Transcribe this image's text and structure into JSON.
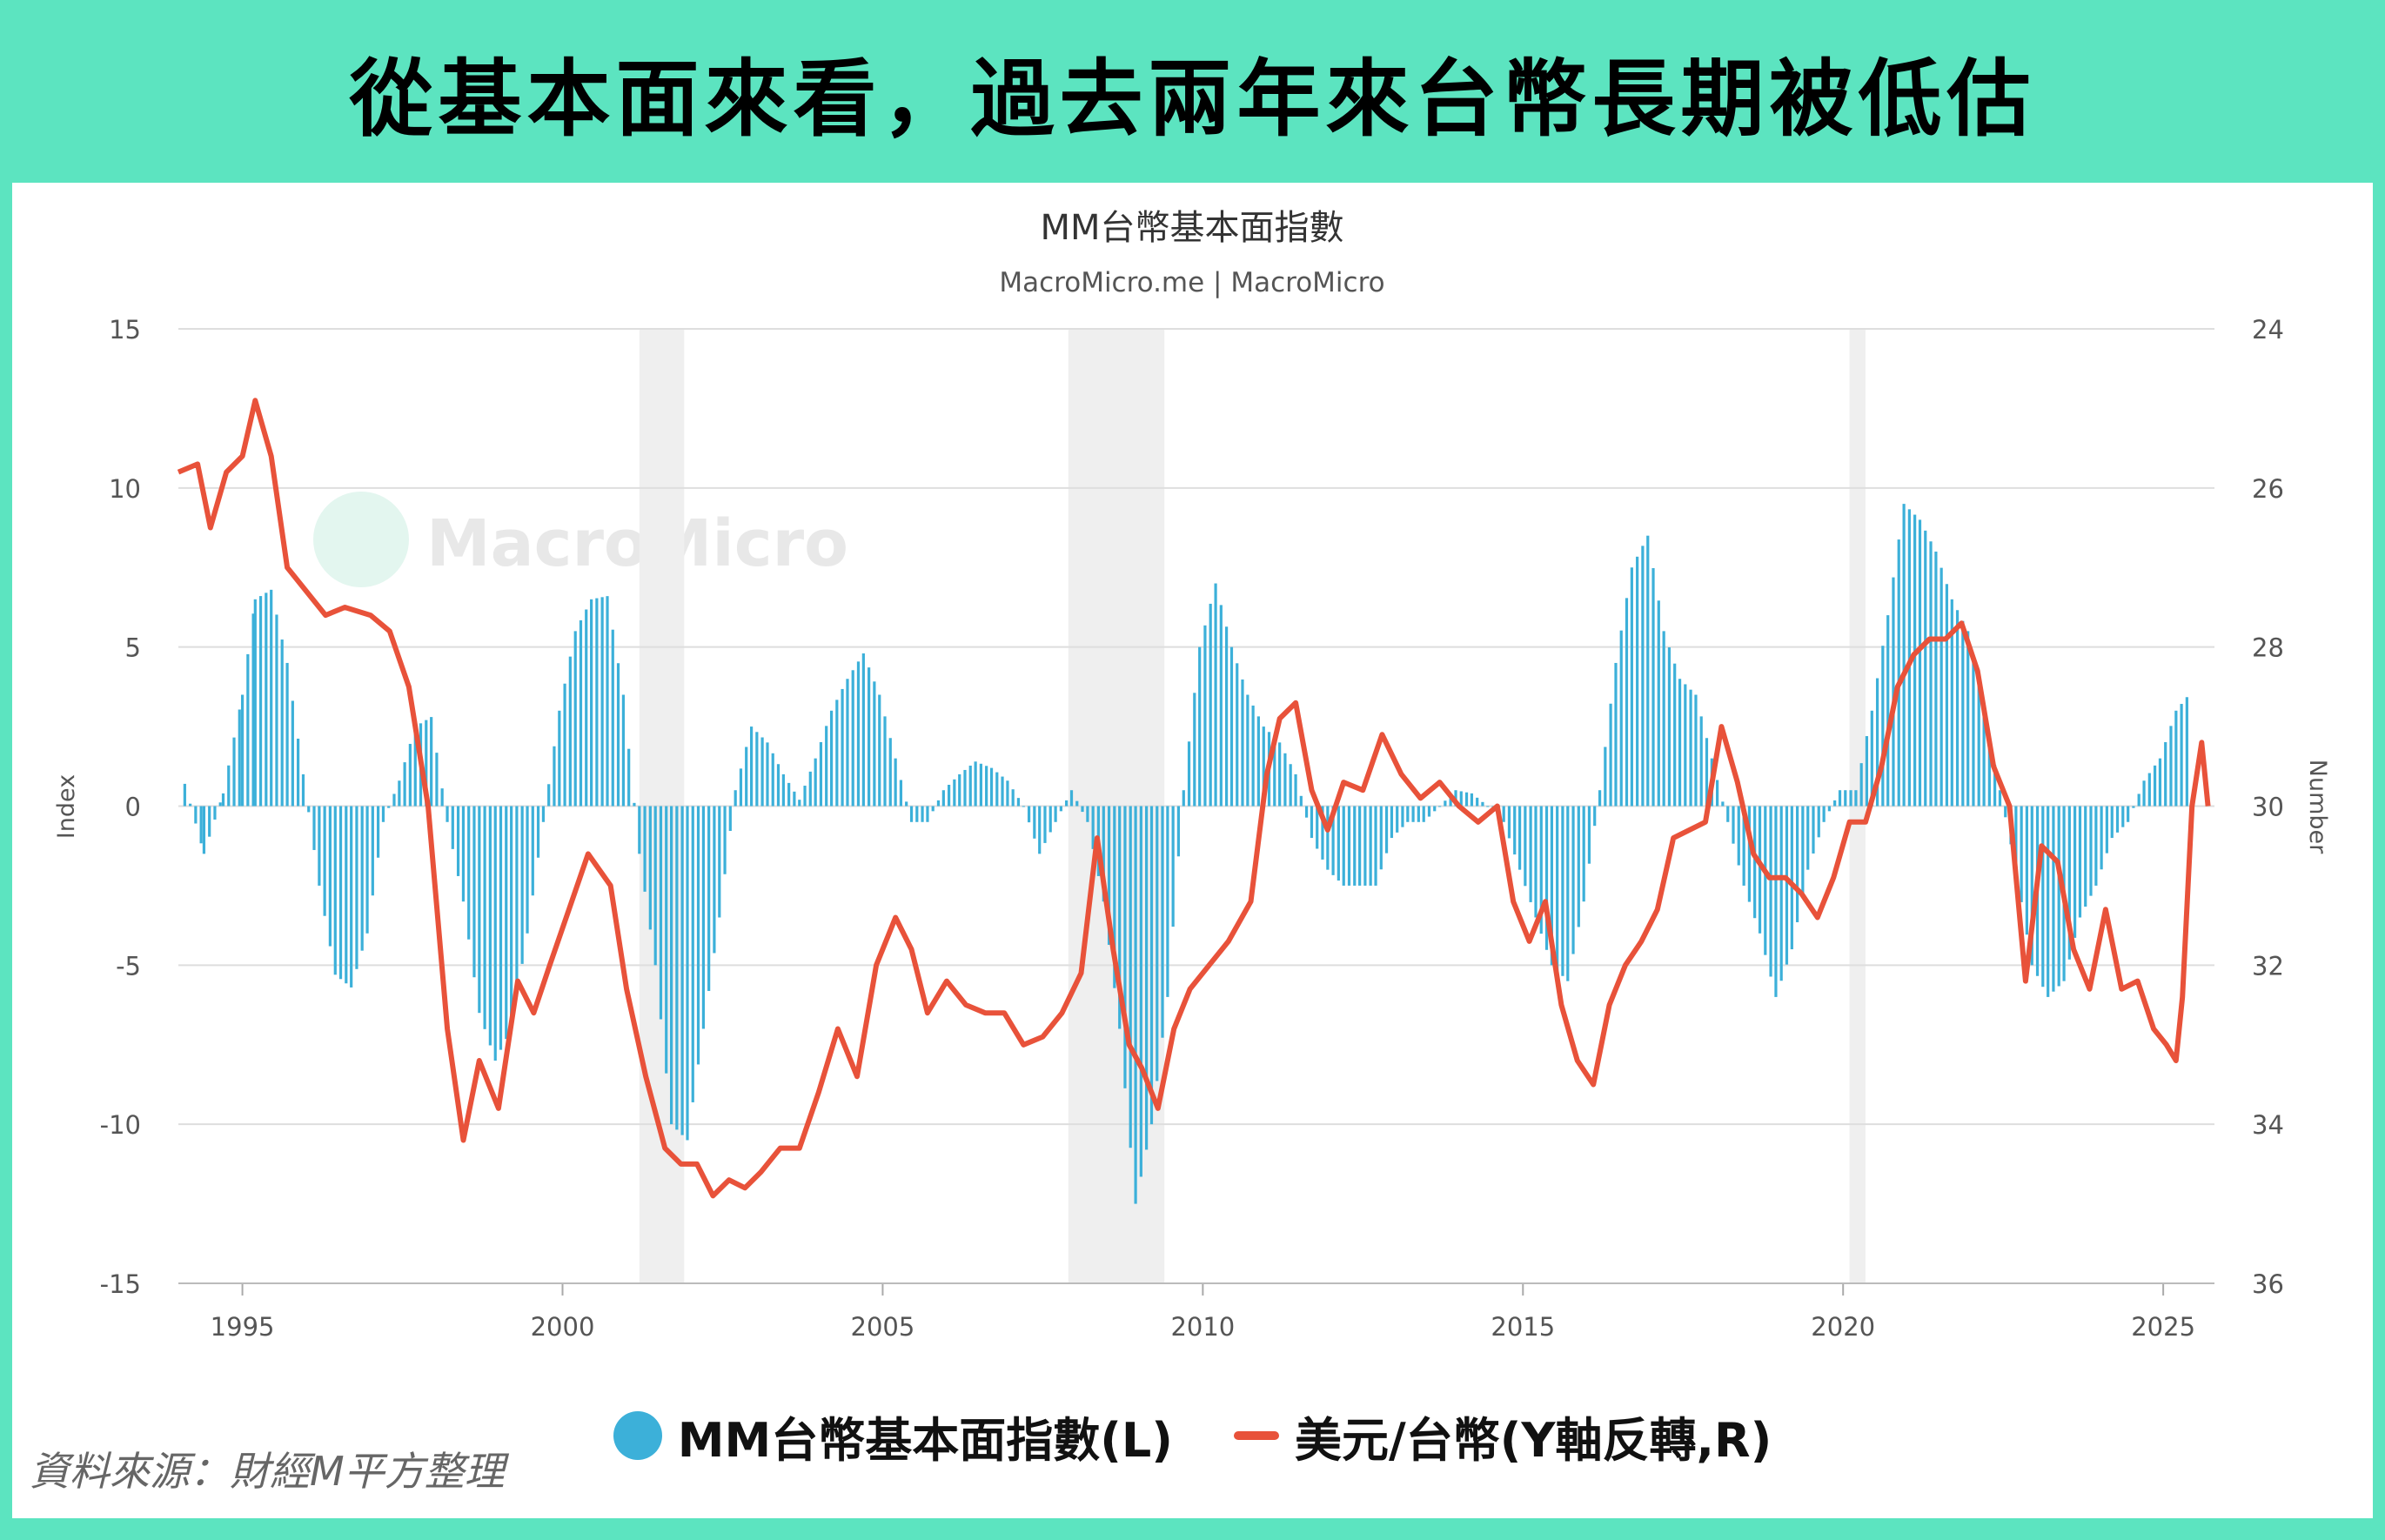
{
  "banner": {
    "title": "從基本面來看，過去兩年來台幣長期被低估"
  },
  "watermark": {
    "text": "MacroMicro"
  },
  "source": {
    "text": "資料來源：財經M平方整理"
  },
  "colors": {
    "bars": "#3cb0d9",
    "line": "#e8523a",
    "frame": "#5ce4c0",
    "recession": "#efefef"
  },
  "chart_data": {
    "type": "bar+line",
    "title": "MM台幣基本面指數",
    "subtitle": "MacroMicro.me | MacroMicro",
    "ylabel_left": "Index",
    "ylabel_right": "Number",
    "ylim_left": [
      -15,
      15
    ],
    "ylim_right": [
      36,
      24
    ],
    "right_axis_inverted": true,
    "yticks_left": [
      15,
      10,
      5,
      0,
      -5,
      -10,
      -15
    ],
    "yticks_right": [
      24,
      26,
      28,
      30,
      32,
      34,
      36
    ],
    "xlim": [
      1994.0,
      2025.8
    ],
    "xticks": [
      1995,
      2000,
      2005,
      2010,
      2015,
      2020,
      2025
    ],
    "grid": true,
    "legend_position": "bottom-center",
    "recession_bands": [
      [
        2001.2,
        2001.9
      ],
      [
        2007.9,
        2009.4
      ],
      [
        2020.1,
        2020.35
      ]
    ],
    "series": [
      {
        "name": "MM台幣基本面指數(L)",
        "type": "bar",
        "axis": "left",
        "points": [
          [
            1994.1,
            0.7
          ],
          [
            1994.4,
            -1.5
          ],
          [
            1994.7,
            0.4
          ],
          [
            1995.0,
            3.5
          ],
          [
            1995.2,
            6.5
          ],
          [
            1995.45,
            6.8
          ],
          [
            1995.7,
            4.5
          ],
          [
            1995.95,
            1.0
          ],
          [
            1996.2,
            -2.5
          ],
          [
            1996.45,
            -5.3
          ],
          [
            1996.7,
            -5.7
          ],
          [
            1996.95,
            -4.0
          ],
          [
            1997.2,
            -0.5
          ],
          [
            1997.45,
            0.8
          ],
          [
            1997.7,
            2.5
          ],
          [
            1997.95,
            2.8
          ],
          [
            1998.2,
            -0.5
          ],
          [
            1998.45,
            -3.0
          ],
          [
            1998.7,
            -6.5
          ],
          [
            1998.95,
            -8.0
          ],
          [
            1999.2,
            -7.0
          ],
          [
            1999.45,
            -4.0
          ],
          [
            1999.7,
            -0.5
          ],
          [
            1999.95,
            3.0
          ],
          [
            2000.2,
            5.5
          ],
          [
            2000.45,
            6.5
          ],
          [
            2000.7,
            6.6
          ],
          [
            2000.95,
            3.5
          ],
          [
            2001.2,
            -1.5
          ],
          [
            2001.45,
            -5.0
          ],
          [
            2001.7,
            -10.0
          ],
          [
            2001.95,
            -10.5
          ],
          [
            2002.2,
            -7.0
          ],
          [
            2002.45,
            -3.5
          ],
          [
            2002.7,
            0.5
          ],
          [
            2002.95,
            2.5
          ],
          [
            2003.2,
            2.0
          ],
          [
            2003.45,
            1.0
          ],
          [
            2003.7,
            0.2
          ],
          [
            2003.95,
            1.5
          ],
          [
            2004.2,
            3.0
          ],
          [
            2004.45,
            4.0
          ],
          [
            2004.7,
            4.8
          ],
          [
            2004.95,
            3.5
          ],
          [
            2005.2,
            1.5
          ],
          [
            2005.45,
            -0.5
          ],
          [
            2005.7,
            -0.5
          ],
          [
            2005.95,
            0.5
          ],
          [
            2006.2,
            1.0
          ],
          [
            2006.45,
            1.4
          ],
          [
            2006.7,
            1.2
          ],
          [
            2006.95,
            0.8
          ],
          [
            2007.2,
            0.0
          ],
          [
            2007.45,
            -1.5
          ],
          [
            2007.7,
            -0.5
          ],
          [
            2007.95,
            0.5
          ],
          [
            2008.2,
            -0.5
          ],
          [
            2008.45,
            -3.0
          ],
          [
            2008.7,
            -7.0
          ],
          [
            2008.95,
            -12.5
          ],
          [
            2009.2,
            -10.0
          ],
          [
            2009.45,
            -6.0
          ],
          [
            2009.7,
            0.5
          ],
          [
            2009.95,
            5.0
          ],
          [
            2010.2,
            7.0
          ],
          [
            2010.45,
            5.0
          ],
          [
            2010.7,
            3.5
          ],
          [
            2010.95,
            2.5
          ],
          [
            2011.2,
            2.0
          ],
          [
            2011.45,
            1.0
          ],
          [
            2011.7,
            -1.0
          ],
          [
            2011.95,
            -2.0
          ],
          [
            2012.2,
            -2.5
          ],
          [
            2012.45,
            -2.5
          ],
          [
            2012.7,
            -2.5
          ],
          [
            2012.95,
            -1.0
          ],
          [
            2013.2,
            -0.5
          ],
          [
            2013.45,
            -0.5
          ],
          [
            2013.7,
            0.0
          ],
          [
            2013.95,
            0.5
          ],
          [
            2014.2,
            0.4
          ],
          [
            2014.45,
            0.0
          ],
          [
            2014.7,
            -0.5
          ],
          [
            2014.95,
            -2.0
          ],
          [
            2015.2,
            -3.5
          ],
          [
            2015.45,
            -5.0
          ],
          [
            2015.7,
            -5.5
          ],
          [
            2015.95,
            -3.0
          ],
          [
            2016.2,
            0.5
          ],
          [
            2016.45,
            4.5
          ],
          [
            2016.7,
            7.5
          ],
          [
            2016.95,
            8.5
          ],
          [
            2017.2,
            5.5
          ],
          [
            2017.45,
            4.0
          ],
          [
            2017.7,
            3.5
          ],
          [
            2017.95,
            1.5
          ],
          [
            2018.2,
            -0.5
          ],
          [
            2018.45,
            -2.5
          ],
          [
            2018.7,
            -4.0
          ],
          [
            2018.95,
            -6.0
          ],
          [
            2019.2,
            -4.5
          ],
          [
            2019.45,
            -2.0
          ],
          [
            2019.7,
            -0.5
          ],
          [
            2019.95,
            0.5
          ],
          [
            2020.2,
            0.5
          ],
          [
            2020.45,
            3.0
          ],
          [
            2020.7,
            6.0
          ],
          [
            2020.95,
            9.5
          ],
          [
            2021.2,
            9.0
          ],
          [
            2021.45,
            8.0
          ],
          [
            2021.7,
            6.5
          ],
          [
            2021.95,
            5.5
          ],
          [
            2022.2,
            3.0
          ],
          [
            2022.45,
            0.5
          ],
          [
            2022.7,
            -2.0
          ],
          [
            2022.95,
            -5.0
          ],
          [
            2023.2,
            -6.0
          ],
          [
            2023.45,
            -5.5
          ],
          [
            2023.7,
            -3.5
          ],
          [
            2023.95,
            -2.5
          ],
          [
            2024.2,
            -1.0
          ],
          [
            2024.45,
            -0.5
          ],
          [
            2024.7,
            0.8
          ],
          [
            2024.95,
            1.5
          ],
          [
            2025.2,
            3.0
          ],
          [
            2025.4,
            3.5
          ]
        ]
      },
      {
        "name": "美元/台幣(Y軸反轉,R)",
        "type": "line",
        "axis": "right",
        "points": [
          [
            1994.0,
            25.8
          ],
          [
            1994.3,
            25.7
          ],
          [
            1994.5,
            26.5
          ],
          [
            1994.75,
            25.8
          ],
          [
            1995.0,
            25.6
          ],
          [
            1995.2,
            24.9
          ],
          [
            1995.45,
            25.6
          ],
          [
            1995.7,
            27.0
          ],
          [
            1996.0,
            27.3
          ],
          [
            1996.3,
            27.6
          ],
          [
            1996.6,
            27.5
          ],
          [
            1997.0,
            27.6
          ],
          [
            1997.3,
            27.8
          ],
          [
            1997.6,
            28.5
          ],
          [
            1997.9,
            30.0
          ],
          [
            1998.2,
            32.8
          ],
          [
            1998.45,
            34.2
          ],
          [
            1998.7,
            33.2
          ],
          [
            1999.0,
            33.8
          ],
          [
            1999.3,
            32.2
          ],
          [
            1999.55,
            32.6
          ],
          [
            1999.8,
            32.0
          ],
          [
            2000.1,
            31.3
          ],
          [
            2000.4,
            30.6
          ],
          [
            2000.75,
            31.0
          ],
          [
            2001.0,
            32.3
          ],
          [
            2001.3,
            33.4
          ],
          [
            2001.6,
            34.3
          ],
          [
            2001.85,
            34.5
          ],
          [
            2002.1,
            34.5
          ],
          [
            2002.35,
            34.9
          ],
          [
            2002.6,
            34.7
          ],
          [
            2002.85,
            34.8
          ],
          [
            2003.1,
            34.6
          ],
          [
            2003.4,
            34.3
          ],
          [
            2003.7,
            34.3
          ],
          [
            2004.0,
            33.6
          ],
          [
            2004.3,
            32.8
          ],
          [
            2004.6,
            33.4
          ],
          [
            2004.9,
            32.0
          ],
          [
            2005.2,
            31.4
          ],
          [
            2005.45,
            31.8
          ],
          [
            2005.7,
            32.6
          ],
          [
            2006.0,
            32.2
          ],
          [
            2006.3,
            32.5
          ],
          [
            2006.6,
            32.6
          ],
          [
            2006.9,
            32.6
          ],
          [
            2007.2,
            33.0
          ],
          [
            2007.5,
            32.9
          ],
          [
            2007.8,
            32.6
          ],
          [
            2008.1,
            32.1
          ],
          [
            2008.35,
            30.4
          ],
          [
            2008.6,
            31.8
          ],
          [
            2008.85,
            33.0
          ],
          [
            2009.05,
            33.3
          ],
          [
            2009.3,
            33.8
          ],
          [
            2009.55,
            32.8
          ],
          [
            2009.8,
            32.3
          ],
          [
            2010.1,
            32.0
          ],
          [
            2010.4,
            31.7
          ],
          [
            2010.75,
            31.2
          ],
          [
            2011.0,
            29.6
          ],
          [
            2011.2,
            28.9
          ],
          [
            2011.45,
            28.7
          ],
          [
            2011.7,
            29.8
          ],
          [
            2011.95,
            30.3
          ],
          [
            2012.2,
            29.7
          ],
          [
            2012.5,
            29.8
          ],
          [
            2012.8,
            29.1
          ],
          [
            2013.1,
            29.6
          ],
          [
            2013.4,
            29.9
          ],
          [
            2013.7,
            29.7
          ],
          [
            2014.0,
            30.0
          ],
          [
            2014.3,
            30.2
          ],
          [
            2014.6,
            30.0
          ],
          [
            2014.85,
            31.2
          ],
          [
            2015.1,
            31.7
          ],
          [
            2015.35,
            31.2
          ],
          [
            2015.6,
            32.5
          ],
          [
            2015.85,
            33.2
          ],
          [
            2016.1,
            33.5
          ],
          [
            2016.35,
            32.5
          ],
          [
            2016.6,
            32.0
          ],
          [
            2016.85,
            31.7
          ],
          [
            2017.1,
            31.3
          ],
          [
            2017.35,
            30.4
          ],
          [
            2017.6,
            30.3
          ],
          [
            2017.85,
            30.2
          ],
          [
            2018.1,
            29.0
          ],
          [
            2018.35,
            29.7
          ],
          [
            2018.6,
            30.6
          ],
          [
            2018.85,
            30.9
          ],
          [
            2019.1,
            30.9
          ],
          [
            2019.35,
            31.1
          ],
          [
            2019.6,
            31.4
          ],
          [
            2019.85,
            30.9
          ],
          [
            2020.1,
            30.2
          ],
          [
            2020.35,
            30.2
          ],
          [
            2020.6,
            29.5
          ],
          [
            2020.85,
            28.5
          ],
          [
            2021.1,
            28.1
          ],
          [
            2021.35,
            27.9
          ],
          [
            2021.6,
            27.9
          ],
          [
            2021.85,
            27.7
          ],
          [
            2022.1,
            28.3
          ],
          [
            2022.35,
            29.5
          ],
          [
            2022.6,
            30.0
          ],
          [
            2022.85,
            32.2
          ],
          [
            2023.1,
            30.5
          ],
          [
            2023.35,
            30.7
          ],
          [
            2023.6,
            31.8
          ],
          [
            2023.85,
            32.3
          ],
          [
            2024.1,
            31.3
          ],
          [
            2024.35,
            32.3
          ],
          [
            2024.6,
            32.2
          ],
          [
            2024.85,
            32.8
          ],
          [
            2025.05,
            33.0
          ],
          [
            2025.2,
            33.2
          ],
          [
            2025.3,
            32.4
          ],
          [
            2025.45,
            30.0
          ],
          [
            2025.6,
            29.2
          ],
          [
            2025.7,
            30.0
          ]
        ]
      }
    ]
  }
}
